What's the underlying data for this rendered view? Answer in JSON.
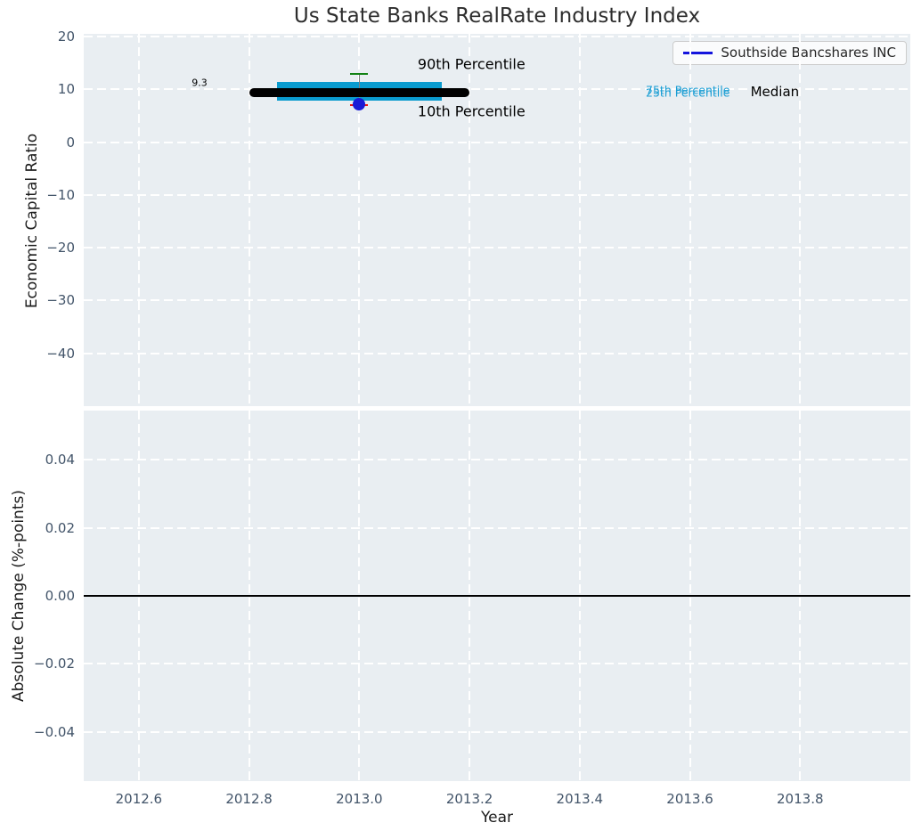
{
  "title": "Us State Banks RealRate Industry Index",
  "legend": {
    "label": "Southside Bancshares INC",
    "line_color": "#1414dd",
    "position": "upper right"
  },
  "colors": {
    "axes_bg": "#e9eef2",
    "grid": "#ffffff",
    "tick_label": "#425469",
    "text": "#1c1c1c",
    "box_fill": "#0a9bce",
    "percentile_label": "#1b9ed4",
    "median_line": "#000000",
    "whisker": "#7f7f7f",
    "cap_upper": "#128214",
    "cap_lower": "#ee1111",
    "company_marker": "#1a1ad6",
    "zero_line": "#000000"
  },
  "chart_data": [
    {
      "type": "boxplot",
      "title": "Us State Banks RealRate Industry Index",
      "ylabel": "Economic Capital Ratio",
      "xlim": [
        2012.5,
        2014.0
      ],
      "ylim": [
        -50,
        20.5
      ],
      "grid": "white dashed, on",
      "xticks": {
        "values": [
          2012.6,
          2012.8,
          2013.0,
          2013.2,
          2013.4,
          2013.6,
          2013.8
        ],
        "labels": [
          "2012.6",
          "2012.8",
          "2013.0",
          "2013.2",
          "2013.4",
          "2013.6",
          "2013.8"
        ]
      },
      "yticks": {
        "values": [
          20,
          10,
          0,
          -10,
          -20,
          -30,
          -40
        ],
        "labels": [
          "20",
          "10",
          "0",
          "−10",
          "−20",
          "−30",
          "−40"
        ]
      },
      "box": {
        "x": 2013.0,
        "median": 9.3,
        "q1": 7.9,
        "q3": 11.4,
        "p10": 7.0,
        "p90": 12.9,
        "box_half_width": 0.15,
        "median_half_width": 0.2,
        "cap_half_width": 0.0162
      },
      "company_point": {
        "x": 2013.0,
        "y": 7.1,
        "series": "Southside Bancshares INC"
      },
      "annotations": [
        {
          "text": "9.3",
          "x": 2012.696,
          "y": 11.2,
          "color": "#000000",
          "size": 11
        },
        {
          "text": "90th Percentile",
          "x": 2013.106,
          "y": 14.8,
          "color": "#000000",
          "size": 16
        },
        {
          "text": "10th Percentile",
          "x": 2013.106,
          "y": 5.8,
          "color": "#000000",
          "size": 16
        },
        {
          "text": "75th Percentile",
          "x": 2013.52,
          "y": 9.9,
          "color": "#1b9ed4",
          "size": 12.5
        },
        {
          "text": "25th Percentile",
          "x": 2013.52,
          "y": 9.4,
          "color": "#1b9ed4",
          "size": 12.5
        },
        {
          "text": "Median",
          "x": 2013.71,
          "y": 9.5,
          "color": "#000000",
          "size": 15
        }
      ]
    },
    {
      "type": "line",
      "xlabel": "Year",
      "ylabel": "Absolute Change (%-points)",
      "xlim": [
        2012.5,
        2014.0
      ],
      "ylim": [
        -0.0545,
        0.0545
      ],
      "grid": "white dashed, on",
      "yticks": {
        "values": [
          0.04,
          0.02,
          0.0,
          -0.02,
          -0.04
        ],
        "labels": [
          "0.04",
          "0.02",
          "0.00",
          "−0.02",
          "−0.04"
        ]
      },
      "zero_line": 0.0,
      "series": []
    }
  ]
}
